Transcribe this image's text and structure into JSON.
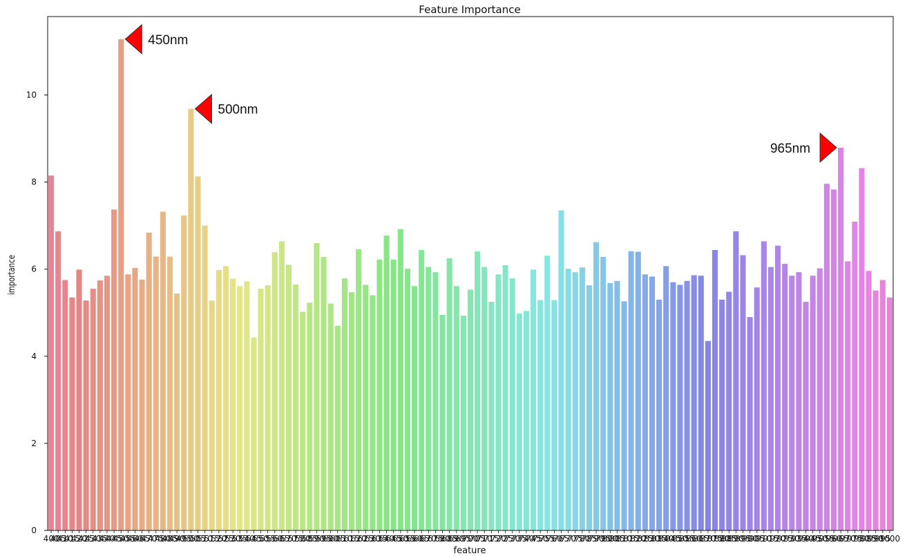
{
  "chart_data": {
    "type": "bar",
    "title": "Feature Importance",
    "xlabel": "feature",
    "ylabel": "importance",
    "ylim": [
      0,
      11.8
    ],
    "yticks": [
      0,
      2,
      4,
      6,
      8,
      10
    ],
    "grid": false,
    "legend": "none",
    "x_tick_labels": [
      "400",
      "405",
      "410",
      "415",
      "420",
      "425",
      "430",
      "435",
      "440",
      "445",
      "450",
      "455",
      "460",
      "465",
      "470",
      "475",
      "480",
      "485",
      "490",
      "495",
      "500",
      "505",
      "510",
      "515",
      "520",
      "525",
      "530",
      "535",
      "540",
      "545",
      "550",
      "555",
      "560",
      "565",
      "570",
      "575",
      "580",
      "585",
      "590",
      "595",
      "600",
      "605",
      "610",
      "615",
      "620",
      "625",
      "630",
      "635",
      "640",
      "645",
      "650",
      "655",
      "660",
      "665",
      "670",
      "675",
      "680",
      "685",
      "690",
      "695",
      "700",
      "705",
      "710",
      "715",
      "720",
      "725",
      "730",
      "735",
      "740",
      "745",
      "750",
      "755",
      "760",
      "765",
      "770",
      "775",
      "780",
      "785",
      "790",
      "795",
      "800",
      "805",
      "810",
      "815",
      "820",
      "825",
      "830",
      "835",
      "840",
      "845",
      "850",
      "855",
      "860",
      "865",
      "870",
      "875",
      "880",
      "885",
      "890",
      "895",
      "900",
      "905",
      "910",
      "915",
      "920",
      "925",
      "930",
      "935",
      "940",
      "945",
      "950",
      "955",
      "960",
      "965",
      "970",
      "975",
      "980",
      "985",
      "990",
      "995",
      "1000"
    ],
    "values": [
      8.15,
      6.87,
      5.75,
      5.35,
      5.99,
      5.28,
      5.55,
      5.74,
      5.85,
      7.37,
      11.28,
      5.88,
      6.03,
      5.76,
      6.84,
      6.29,
      7.32,
      6.29,
      5.44,
      7.23,
      9.68,
      8.13,
      7.0,
      5.28,
      5.98,
      6.07,
      5.78,
      5.61,
      5.72,
      4.43,
      5.55,
      5.63,
      6.39,
      6.64,
      6.1,
      5.65,
      5.02,
      5.23,
      6.6,
      6.28,
      5.21,
      4.7,
      5.79,
      5.47,
      6.46,
      5.64,
      5.4,
      6.22,
      6.77,
      6.22,
      6.92,
      6.01,
      5.61,
      6.44,
      6.05,
      5.93,
      4.95,
      6.25,
      5.61,
      4.93,
      5.53,
      6.41,
      6.05,
      5.25,
      5.88,
      6.09,
      5.79,
      4.98,
      5.04,
      5.99,
      5.29,
      6.31,
      5.29,
      7.35,
      6.01,
      5.93,
      6.04,
      5.63,
      6.62,
      6.28,
      5.68,
      5.73,
      5.26,
      6.41,
      6.4,
      5.88,
      5.83,
      5.3,
      6.07,
      5.7,
      5.64,
      5.73,
      5.86,
      5.85,
      4.35,
      6.44,
      5.3,
      5.48,
      6.87,
      6.32,
      4.9,
      5.58,
      6.64,
      6.05,
      6.54,
      6.12,
      5.85,
      5.93,
      5.25,
      5.85,
      6.02,
      7.96,
      7.83,
      8.79,
      6.18,
      7.09,
      8.32,
      5.96,
      5.51,
      5.75,
      5.35
    ],
    "annotations": [
      {
        "text": "450nm",
        "category": "450",
        "direction": "left"
      },
      {
        "text": "500nm",
        "category": "500",
        "direction": "left"
      },
      {
        "text": "965nm",
        "category": "965",
        "direction": "right"
      }
    ],
    "annotation_color": "#ff0000"
  }
}
